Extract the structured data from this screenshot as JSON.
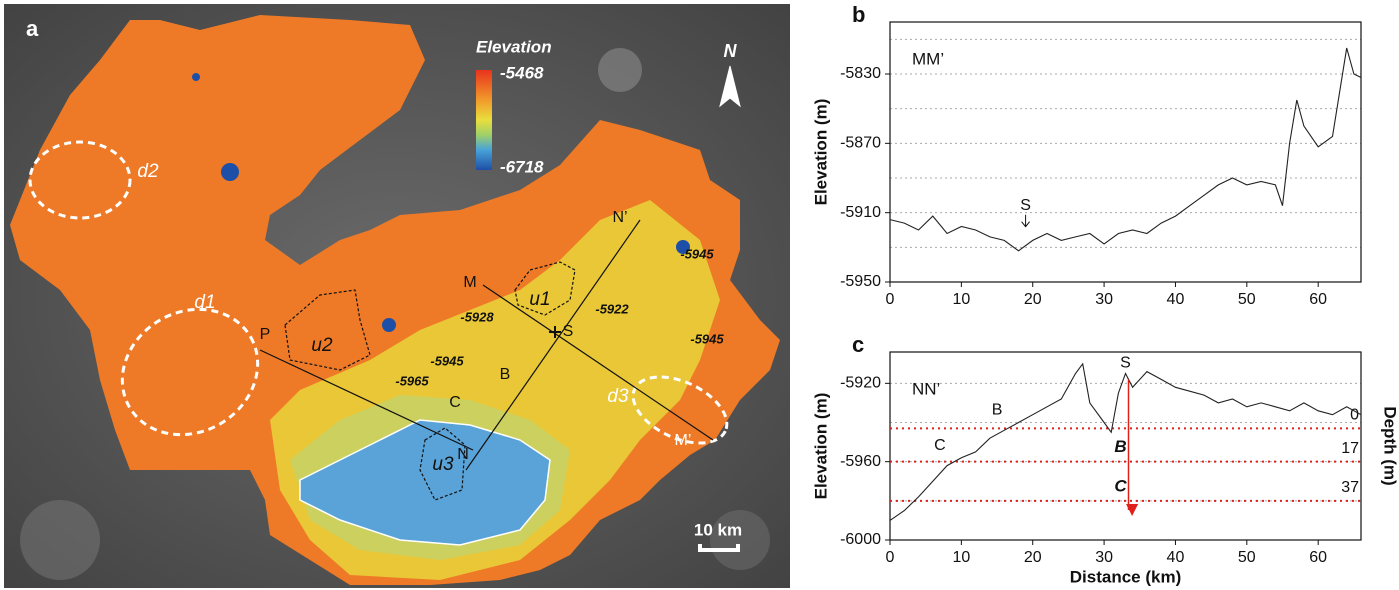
{
  "figure": {
    "panel": "a",
    "legend_title": "Elevation",
    "legend_max": "-5468",
    "legend_min": "-6718",
    "north": "N",
    "scale": "10 km",
    "labels": [
      "d2",
      "d1",
      "d3",
      "u1",
      "u2",
      "u3",
      "M",
      "M’",
      "N’",
      "N",
      "P",
      "S",
      "B",
      "C"
    ],
    "contours": [
      "-5945",
      "-5922",
      "-5928",
      "-5945",
      "-5965",
      "-5945"
    ]
  },
  "chart_data": [
    {
      "type": "line",
      "panel": "b",
      "title": "MM’",
      "ylabel": "Elevation (m)",
      "x": [
        0,
        2,
        4,
        6,
        8,
        10,
        12,
        14,
        16,
        18,
        20,
        22,
        24,
        26,
        28,
        30,
        32,
        34,
        36,
        38,
        40,
        42,
        44,
        46,
        48,
        50,
        52,
        54,
        55,
        56,
        57,
        58,
        60,
        62,
        64,
        65,
        66
      ],
      "series": [
        {
          "color": "#222222",
          "values": [
            -5914,
            -5916,
            -5920,
            -5912,
            -5922,
            -5918,
            -5920,
            -5924,
            -5926,
            -5932,
            -5926,
            -5922,
            -5926,
            -5924,
            -5922,
            -5928,
            -5922,
            -5920,
            -5922,
            -5916,
            -5912,
            -5906,
            -5900,
            -5894,
            -5890,
            -5894,
            -5892,
            -5894,
            -5906,
            -5870,
            -5845,
            -5860,
            -5872,
            -5866,
            -5815,
            -5830,
            -5832
          ]
        }
      ],
      "xlim": [
        0,
        66
      ],
      "xticks": [
        0,
        10,
        20,
        30,
        40,
        50,
        60
      ],
      "ylim": [
        -5950,
        -5800
      ],
      "yticks": [
        -5950,
        -5910,
        -5870,
        -5830
      ],
      "ygrid": [
        -5950,
        -5930,
        -5910,
        -5890,
        -5870,
        -5850,
        -5830,
        -5810
      ],
      "annotations": [
        {
          "text": "S",
          "x": 19,
          "y": -5906
        }
      ]
    },
    {
      "type": "line",
      "panel": "c",
      "title": "NN’",
      "ylabel": "Elevation (m)",
      "xlabel": "Distance (km)",
      "y2label": "Depth (m)",
      "x": [
        0,
        2,
        4,
        6,
        8,
        10,
        12,
        14,
        16,
        18,
        20,
        22,
        24,
        26,
        27,
        28,
        30,
        31,
        32,
        33,
        34,
        36,
        38,
        40,
        42,
        44,
        46,
        48,
        50,
        52,
        54,
        56,
        58,
        60,
        62,
        64,
        66
      ],
      "series": [
        {
          "color": "#222222",
          "values": [
            -5990,
            -5985,
            -5978,
            -5970,
            -5962,
            -5958,
            -5955,
            -5948,
            -5944,
            -5940,
            -5936,
            -5932,
            -5928,
            -5915,
            -5910,
            -5930,
            -5940,
            -5945,
            -5925,
            -5915,
            -5922,
            -5914,
            -5918,
            -5922,
            -5924,
            -5926,
            -5930,
            -5928,
            -5932,
            -5930,
            -5932,
            -5934,
            -5930,
            -5934,
            -5936,
            -5932,
            -5936
          ]
        }
      ],
      "xlim": [
        0,
        66
      ],
      "xticks": [
        0,
        10,
        20,
        30,
        40,
        50,
        60
      ],
      "ylim": [
        -6000,
        -5904
      ],
      "yticks": [
        -6000,
        -5960,
        -5920
      ],
      "ygrid": [
        -5980,
        -5960,
        -5940,
        -5920
      ],
      "y2lim": [
        57,
        -39
      ],
      "y2ticks": [
        0,
        17,
        37
      ],
      "y2color": "#e0201b",
      "annotations": [
        {
          "text": "C",
          "x": 7,
          "y": -5958
        },
        {
          "text": "B",
          "x": 15,
          "y": -5940
        },
        {
          "text": "S",
          "x": 33,
          "y": -5916
        }
      ],
      "depth_labels": [
        "B",
        "C"
      ]
    }
  ]
}
